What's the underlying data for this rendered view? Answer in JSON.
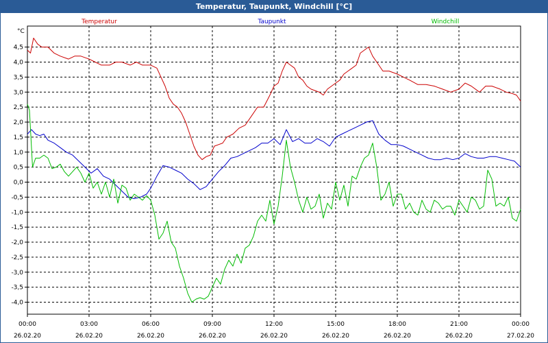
{
  "window": {
    "title": "Temperatur, Taupunkt, Windchill [°C]"
  },
  "chart_data": {
    "type": "line",
    "title": "Temperatur, Taupunkt, Windchill [°C]",
    "ylabel": "°C",
    "ylim": [
      -4.4,
      5.2
    ],
    "xlim": [
      0,
      24
    ],
    "grid": true,
    "yticks": [
      {
        "v": 4.5,
        "label": "4,5"
      },
      {
        "v": 4.0,
        "label": "4,0"
      },
      {
        "v": 3.5,
        "label": "3,5"
      },
      {
        "v": 3.0,
        "label": "3,0"
      },
      {
        "v": 2.5,
        "label": "2,5"
      },
      {
        "v": 2.0,
        "label": "2,0"
      },
      {
        "v": 1.5,
        "label": "1,5"
      },
      {
        "v": 1.0,
        "label": "1,0"
      },
      {
        "v": 0.5,
        "label": "0,5"
      },
      {
        "v": 0.0,
        "label": "0,0"
      },
      {
        "v": -0.5,
        "label": "-0,5"
      },
      {
        "v": -1.0,
        "label": "-1,0"
      },
      {
        "v": -1.5,
        "label": "-1,5"
      },
      {
        "v": -2.0,
        "label": "-2,0"
      },
      {
        "v": -2.5,
        "label": "-2,5"
      },
      {
        "v": -3.0,
        "label": "-3,0"
      },
      {
        "v": -3.5,
        "label": "-3,5"
      },
      {
        "v": -4.0,
        "label": "-4,0"
      }
    ],
    "xticks": [
      {
        "v": 0,
        "time": "00:00",
        "date": "26.02.20"
      },
      {
        "v": 3,
        "time": "03:00",
        "date": "26.02.20"
      },
      {
        "v": 6,
        "time": "06:00",
        "date": "26.02.20"
      },
      {
        "v": 9,
        "time": "09:00",
        "date": "26.02.20"
      },
      {
        "v": 12,
        "time": "12:00",
        "date": "26.02.20"
      },
      {
        "v": 15,
        "time": "15:00",
        "date": "26.02.20"
      },
      {
        "v": 18,
        "time": "18:00",
        "date": "26.02.20"
      },
      {
        "v": 21,
        "time": "21:00",
        "date": "26.02.20"
      },
      {
        "v": 24,
        "time": "00:00",
        "date": "27.02.20"
      }
    ],
    "series": [
      {
        "name": "Temperatur",
        "color": "#cc0000",
        "x": [
          0,
          0.15,
          0.3,
          0.5,
          0.7,
          1.0,
          1.3,
          1.6,
          2.0,
          2.3,
          2.6,
          3.0,
          3.3,
          3.6,
          4.0,
          4.3,
          4.6,
          5.0,
          5.3,
          5.6,
          6.0,
          6.3,
          6.5,
          6.7,
          6.9,
          7.1,
          7.3,
          7.5,
          7.7,
          7.9,
          8.1,
          8.3,
          8.5,
          8.7,
          8.9,
          9.1,
          9.3,
          9.5,
          9.7,
          10.0,
          10.3,
          10.6,
          10.9,
          11.2,
          11.5,
          11.8,
          12.0,
          12.2,
          12.4,
          12.6,
          12.8,
          13.0,
          13.2,
          13.4,
          13.6,
          13.8,
          14.0,
          14.2,
          14.4,
          14.6,
          14.8,
          15.0,
          15.2,
          15.4,
          15.6,
          15.8,
          16.0,
          16.2,
          16.4,
          16.6,
          16.8,
          17.0,
          17.3,
          17.6,
          18.0,
          18.3,
          18.6,
          19.0,
          19.4,
          19.8,
          20.2,
          20.6,
          21.0,
          21.3,
          21.6,
          22.0,
          22.3,
          22.6,
          23.0,
          23.3,
          23.6,
          23.8,
          24.0
        ],
        "values": [
          4.4,
          4.3,
          4.8,
          4.6,
          4.5,
          4.5,
          4.3,
          4.2,
          4.1,
          4.2,
          4.2,
          4.1,
          4.0,
          3.9,
          3.9,
          4.0,
          4.0,
          3.9,
          4.0,
          3.9,
          3.9,
          3.8,
          3.5,
          3.2,
          2.8,
          2.6,
          2.5,
          2.3,
          2.0,
          1.6,
          1.2,
          0.9,
          0.75,
          0.85,
          0.9,
          1.2,
          1.25,
          1.3,
          1.5,
          1.6,
          1.8,
          1.9,
          2.2,
          2.5,
          2.5,
          2.9,
          3.2,
          3.3,
          3.7,
          4.0,
          3.9,
          3.8,
          3.5,
          3.4,
          3.2,
          3.1,
          3.05,
          3.0,
          2.9,
          3.1,
          3.2,
          3.3,
          3.4,
          3.6,
          3.7,
          3.8,
          3.9,
          4.3,
          4.4,
          4.5,
          4.2,
          4.0,
          3.7,
          3.7,
          3.6,
          3.5,
          3.4,
          3.25,
          3.25,
          3.2,
          3.1,
          3.0,
          3.1,
          3.3,
          3.2,
          3.0,
          3.2,
          3.2,
          3.1,
          3.0,
          2.95,
          2.9,
          2.7
        ]
      },
      {
        "name": "Taupunkt",
        "color": "#0000cc",
        "x": [
          0,
          0.2,
          0.4,
          0.6,
          0.8,
          1.0,
          1.3,
          1.6,
          1.9,
          2.2,
          2.5,
          2.8,
          3.1,
          3.4,
          3.7,
          4.0,
          4.3,
          4.6,
          4.9,
          5.2,
          5.5,
          5.8,
          6.0,
          6.3,
          6.6,
          6.9,
          7.2,
          7.5,
          7.8,
          8.1,
          8.4,
          8.7,
          9.0,
          9.3,
          9.6,
          9.9,
          10.2,
          10.5,
          10.8,
          11.1,
          11.4,
          11.7,
          12.0,
          12.3,
          12.6,
          12.9,
          13.2,
          13.5,
          13.8,
          14.1,
          14.4,
          14.7,
          15.0,
          15.3,
          15.6,
          15.9,
          16.2,
          16.5,
          16.8,
          17.1,
          17.4,
          17.7,
          18.0,
          18.3,
          18.6,
          18.9,
          19.2,
          19.5,
          19.8,
          20.1,
          20.4,
          20.7,
          21.0,
          21.3,
          21.6,
          21.9,
          22.2,
          22.5,
          22.8,
          23.1,
          23.4,
          23.7,
          24.0
        ],
        "values": [
          1.6,
          1.75,
          1.6,
          1.55,
          1.6,
          1.4,
          1.3,
          1.15,
          1.0,
          0.9,
          0.7,
          0.5,
          0.3,
          0.45,
          0.2,
          0.1,
          -0.1,
          -0.3,
          -0.5,
          -0.55,
          -0.5,
          -0.4,
          -0.2,
          0.2,
          0.55,
          0.5,
          0.4,
          0.3,
          0.1,
          -0.05,
          -0.25,
          -0.15,
          0.1,
          0.35,
          0.55,
          0.8,
          0.85,
          0.95,
          1.05,
          1.15,
          1.3,
          1.3,
          1.45,
          1.25,
          1.75,
          1.35,
          1.45,
          1.3,
          1.3,
          1.45,
          1.35,
          1.2,
          1.5,
          1.6,
          1.7,
          1.8,
          1.9,
          2.0,
          2.05,
          1.6,
          1.4,
          1.25,
          1.25,
          1.2,
          1.1,
          1.0,
          0.9,
          0.8,
          0.75,
          0.75,
          0.8,
          0.75,
          0.8,
          0.95,
          0.85,
          0.8,
          0.8,
          0.85,
          0.85,
          0.8,
          0.75,
          0.7,
          0.5
        ]
      },
      {
        "name": "Windchill",
        "color": "#00bb00",
        "x": [
          0,
          0.1,
          0.25,
          0.4,
          0.6,
          0.8,
          1.0,
          1.2,
          1.4,
          1.6,
          1.8,
          2.0,
          2.2,
          2.4,
          2.6,
          2.8,
          3.0,
          3.2,
          3.4,
          3.6,
          3.8,
          4.0,
          4.2,
          4.4,
          4.6,
          4.8,
          5.0,
          5.2,
          5.4,
          5.6,
          5.8,
          6.0,
          6.2,
          6.4,
          6.6,
          6.8,
          7.0,
          7.2,
          7.4,
          7.6,
          7.8,
          8.0,
          8.2,
          8.4,
          8.6,
          8.8,
          9.0,
          9.2,
          9.4,
          9.6,
          9.8,
          10.0,
          10.2,
          10.4,
          10.6,
          10.8,
          11.0,
          11.2,
          11.4,
          11.6,
          11.8,
          12.0,
          12.2,
          12.4,
          12.6,
          12.8,
          13.0,
          13.2,
          13.4,
          13.6,
          13.8,
          14.0,
          14.2,
          14.4,
          14.6,
          14.8,
          15.0,
          15.2,
          15.4,
          15.6,
          15.8,
          16.0,
          16.2,
          16.4,
          16.6,
          16.8,
          17.0,
          17.2,
          17.4,
          17.6,
          17.8,
          18.0,
          18.2,
          18.4,
          18.6,
          18.8,
          19.0,
          19.2,
          19.4,
          19.6,
          19.8,
          20.0,
          20.2,
          20.4,
          20.6,
          20.8,
          21.0,
          21.2,
          21.4,
          21.6,
          21.8,
          22.0,
          22.2,
          22.4,
          22.6,
          22.8,
          23.0,
          23.2,
          23.4,
          23.6,
          23.8,
          24.0
        ],
        "values": [
          2.6,
          2.4,
          0.5,
          0.8,
          0.8,
          0.9,
          0.8,
          0.45,
          0.5,
          0.6,
          0.35,
          0.2,
          0.35,
          0.5,
          0.3,
          0.0,
          0.3,
          -0.2,
          0.0,
          -0.4,
          0.0,
          -0.5,
          0.1,
          -0.7,
          -0.1,
          -0.2,
          -0.6,
          -0.4,
          -0.5,
          -0.6,
          -0.45,
          -0.6,
          -1.1,
          -1.9,
          -1.7,
          -1.3,
          -2.0,
          -2.2,
          -2.8,
          -3.2,
          -3.7,
          -4.0,
          -3.9,
          -3.85,
          -3.9,
          -3.8,
          -3.5,
          -3.2,
          -3.4,
          -2.9,
          -2.6,
          -2.8,
          -2.4,
          -2.7,
          -2.2,
          -2.1,
          -1.8,
          -1.3,
          -1.1,
          -1.3,
          -0.6,
          -1.4,
          -0.8,
          0.2,
          1.4,
          0.5,
          0.0,
          -0.6,
          -1.0,
          -0.5,
          -0.9,
          -0.8,
          -0.4,
          -1.2,
          -0.7,
          -0.9,
          0.0,
          -0.6,
          -0.1,
          -0.8,
          0.2,
          0.1,
          0.5,
          0.8,
          0.9,
          1.3,
          0.5,
          -0.6,
          -0.4,
          0.0,
          -0.8,
          -0.4,
          -0.4,
          -0.9,
          -0.7,
          -1.0,
          -1.1,
          -0.6,
          -0.9,
          -1.0,
          -0.6,
          -0.7,
          -0.9,
          -0.8,
          -0.8,
          -1.1,
          -0.6,
          -0.8,
          -1.0,
          -0.5,
          -0.6,
          -0.9,
          -0.8,
          0.4,
          0.1,
          -0.8,
          -0.7,
          -0.8,
          -0.5,
          -1.2,
          -1.3,
          -0.9
        ]
      }
    ]
  }
}
